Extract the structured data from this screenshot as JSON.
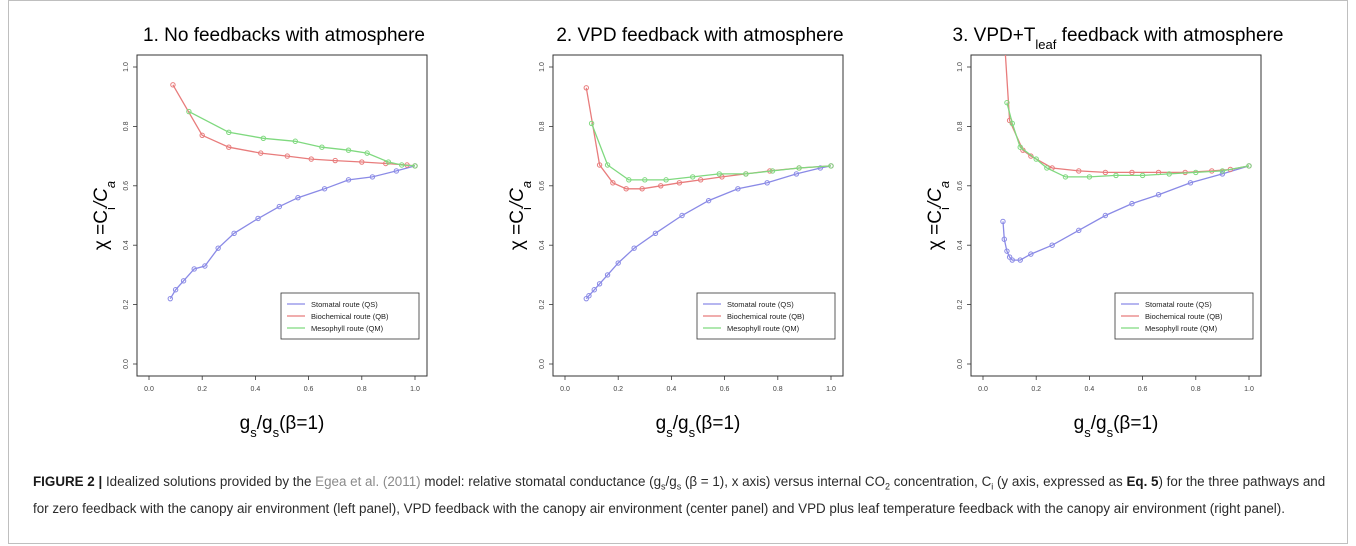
{
  "chart_data": [
    {
      "type": "line",
      "title": "1. No feedbacks with atmosphere",
      "xlabel": "gs/gs(β=1)",
      "ylabel": "χ =Ci/Ca",
      "xlim": [
        0.0,
        1.0
      ],
      "ylim": [
        0.0,
        1.0
      ],
      "xticks": [
        "0.0",
        "0.2",
        "0.4",
        "0.6",
        "0.8",
        "1.0"
      ],
      "yticks": [
        "0.0",
        "0.2",
        "0.4",
        "0.6",
        "0.8",
        "1.0"
      ],
      "legend_position": "bottom-right",
      "series": [
        {
          "name": "Stomatal route (QS)",
          "color": "#8a8ae6",
          "x": [
            0.08,
            0.1,
            0.13,
            0.17,
            0.21,
            0.26,
            0.32,
            0.41,
            0.49,
            0.56,
            0.66,
            0.75,
            0.84,
            0.93,
            1.0
          ],
          "y": [
            0.22,
            0.25,
            0.28,
            0.32,
            0.33,
            0.39,
            0.44,
            0.49,
            0.53,
            0.56,
            0.59,
            0.62,
            0.63,
            0.65,
            0.667
          ]
        },
        {
          "name": "Biochemical route (QB)",
          "color": "#e87c7c",
          "x": [
            0.09,
            0.2,
            0.3,
            0.42,
            0.52,
            0.61,
            0.7,
            0.8,
            0.89,
            0.97,
            1.0
          ],
          "y": [
            0.94,
            0.77,
            0.73,
            0.71,
            0.7,
            0.69,
            0.685,
            0.68,
            0.675,
            0.67,
            0.667
          ]
        },
        {
          "name": "Mesophyll route (QM)",
          "color": "#7fd97f",
          "x": [
            0.15,
            0.3,
            0.43,
            0.55,
            0.65,
            0.75,
            0.82,
            0.9,
            0.95,
            1.0
          ],
          "y": [
            0.85,
            0.78,
            0.76,
            0.75,
            0.73,
            0.72,
            0.71,
            0.68,
            0.67,
            0.667
          ]
        }
      ]
    },
    {
      "type": "line",
      "title": "2. VPD feedback with atmosphere",
      "xlabel": "gs/gs(β=1)",
      "ylabel": "χ =Ci/Ca",
      "xlim": [
        0.0,
        1.0
      ],
      "ylim": [
        0.0,
        1.0
      ],
      "xticks": [
        "0.0",
        "0.2",
        "0.4",
        "0.6",
        "0.8",
        "1.0"
      ],
      "yticks": [
        "0.0",
        "0.2",
        "0.4",
        "0.6",
        "0.8",
        "1.0"
      ],
      "legend_position": "bottom-right",
      "series": [
        {
          "name": "Stomatal route (QS)",
          "color": "#8a8ae6",
          "x": [
            0.08,
            0.09,
            0.11,
            0.13,
            0.16,
            0.2,
            0.26,
            0.34,
            0.44,
            0.54,
            0.65,
            0.76,
            0.87,
            0.96,
            1.0
          ],
          "y": [
            0.22,
            0.23,
            0.25,
            0.27,
            0.3,
            0.34,
            0.39,
            0.44,
            0.5,
            0.55,
            0.59,
            0.61,
            0.64,
            0.66,
            0.667
          ]
        },
        {
          "name": "Biochemical route (QB)",
          "color": "#e87c7c",
          "x": [
            0.08,
            0.13,
            0.18,
            0.23,
            0.29,
            0.36,
            0.43,
            0.51,
            0.59,
            0.68,
            0.77,
            0.88,
            1.0
          ],
          "y": [
            0.93,
            0.67,
            0.61,
            0.59,
            0.59,
            0.6,
            0.61,
            0.62,
            0.63,
            0.64,
            0.65,
            0.66,
            0.667
          ]
        },
        {
          "name": "Mesophyll route (QM)",
          "color": "#7fd97f",
          "x": [
            0.1,
            0.16,
            0.24,
            0.3,
            0.38,
            0.48,
            0.58,
            0.68,
            0.78,
            0.88,
            1.0
          ],
          "y": [
            0.81,
            0.67,
            0.62,
            0.62,
            0.62,
            0.63,
            0.64,
            0.64,
            0.65,
            0.66,
            0.667
          ]
        }
      ]
    },
    {
      "type": "line",
      "title": "3. VPD+Tleaf feedback with atmosphere",
      "xlabel": "gs/gs(β=1)",
      "ylabel": "χ =Ci/Ca",
      "xlim": [
        0.0,
        1.0
      ],
      "ylim": [
        0.0,
        1.0
      ],
      "xticks": [
        "0.0",
        "0.2",
        "0.4",
        "0.6",
        "0.8",
        "1.0"
      ],
      "yticks": [
        "0.0",
        "0.2",
        "0.4",
        "0.6",
        "0.8",
        "1.0"
      ],
      "legend_position": "bottom-right",
      "series": [
        {
          "name": "Stomatal route (QS)",
          "color": "#8a8ae6",
          "x": [
            0.075,
            0.08,
            0.09,
            0.1,
            0.11,
            0.14,
            0.18,
            0.26,
            0.36,
            0.46,
            0.56,
            0.66,
            0.78,
            0.9,
            1.0
          ],
          "y": [
            0.48,
            0.42,
            0.38,
            0.36,
            0.35,
            0.35,
            0.37,
            0.4,
            0.45,
            0.5,
            0.54,
            0.57,
            0.61,
            0.64,
            0.667
          ]
        },
        {
          "name": "Biochemical route (QB)",
          "color": "#e87c7c",
          "x": [
            0.08,
            0.1,
            0.15,
            0.18,
            0.26,
            0.36,
            0.46,
            0.56,
            0.66,
            0.76,
            0.86,
            0.93,
            1.0
          ],
          "y": [
            1.1,
            0.82,
            0.72,
            0.7,
            0.66,
            0.65,
            0.645,
            0.645,
            0.645,
            0.645,
            0.65,
            0.655,
            0.667
          ]
        },
        {
          "name": "Mesophyll route (QM)",
          "color": "#7fd97f",
          "x": [
            0.09,
            0.11,
            0.14,
            0.2,
            0.24,
            0.31,
            0.4,
            0.5,
            0.6,
            0.7,
            0.8,
            0.9,
            1.0
          ],
          "y": [
            0.88,
            0.81,
            0.73,
            0.69,
            0.66,
            0.63,
            0.63,
            0.635,
            0.635,
            0.64,
            0.645,
            0.65,
            0.667
          ]
        }
      ]
    }
  ],
  "caption": {
    "label": "FIGURE 2 |",
    "text_1": " Idealized solutions provided by the ",
    "ref": "Egea et al. (2011)",
    "text_2": " model: relative stomatal conductance (g",
    "sub_s1": "s",
    "text_3": "/g",
    "sub_s2": "s",
    "text_4": " (β = 1), x axis) versus internal CO",
    "sub_2": "2",
    "text_5": " concentration, C",
    "sub_i": "i",
    "text_6": " (y axis, expressed as ",
    "eq": "Eq. 5",
    "text_7": ") for the three pathways and for zero feedback with the canopy air environment (left panel), VPD feedback with the canopy air environment (center panel) and VPD plus leaf temperature feedback with the canopy air environment (right panel)."
  }
}
